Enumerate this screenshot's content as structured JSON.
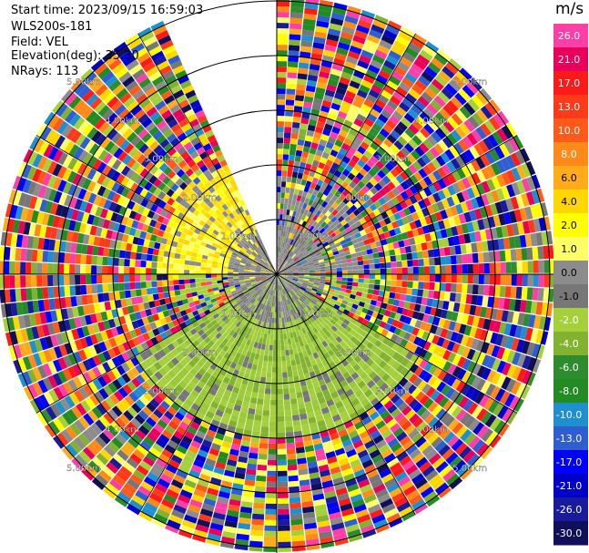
{
  "header": {
    "start_time": "Start time: 2023/09/15 16:59:03",
    "instrument": "WLS200s-181",
    "field": "Field: VEL",
    "elevation": "Elevation(deg): 35.30",
    "nrays": "NRays: 113"
  },
  "colorbar": {
    "unit": "m/s",
    "labels": [
      "26.0",
      "21.0",
      "17.0",
      "13.0",
      "10.0",
      "8.0",
      "6.0",
      "4.0",
      "2.0",
      "1.0",
      "0.0",
      "-1.0",
      "-2.0",
      "-4.0",
      "-6.0",
      "-8.0",
      "-10.0",
      "-13.0",
      "-17.0",
      "-21.0",
      "-26.0",
      "-30.0"
    ],
    "colors": [
      "#ff3fa8",
      "#e8005a",
      "#ff1a1a",
      "#ff3a1a",
      "#ff5a1a",
      "#ff8a1a",
      "#ffab1a",
      "#ffd700",
      "#ffff00",
      "#ffff66",
      "#8c8c8c",
      "#777777",
      "#a6cf3c",
      "#82b22f",
      "#2d8c2d",
      "#228b22",
      "#1f8fd0",
      "#2e5ed0",
      "#0000ff",
      "#0000c8",
      "#1a1a9c",
      "#0f0f5a"
    ]
  },
  "chart_data": {
    "type": "heatmap",
    "projection": "polar-ppi",
    "field": "VEL",
    "units": "m/s",
    "range_ring_labels": [
      "1.00km",
      "2.00km",
      "3.00km",
      "4.00km",
      "5.00km"
    ],
    "range_rings_km": [
      1,
      2,
      3,
      4,
      5
    ],
    "max_range_km": 6,
    "color_levels": [
      -30.0,
      -26.0,
      -21.0,
      -17.0,
      -13.0,
      -10.0,
      -8.0,
      -6.0,
      -4.0,
      -2.0,
      -1.0,
      0.0,
      1.0,
      2.0,
      4.0,
      6.0,
      8.0,
      10.0,
      13.0,
      17.0,
      21.0,
      26.0
    ],
    "no_data_sector_deg": [
      335,
      360
    ],
    "near_field_pattern": {
      "positive_sector_deg": [
        270,
        360
      ],
      "positive_to_range_km": 2.2,
      "negative_sector_deg": [
        120,
        240
      ],
      "negative_to_range_km": 3.0
    },
    "spokes_deg": [
      0,
      30,
      60,
      90,
      120,
      150,
      180,
      210,
      240,
      270,
      300,
      330
    ]
  }
}
